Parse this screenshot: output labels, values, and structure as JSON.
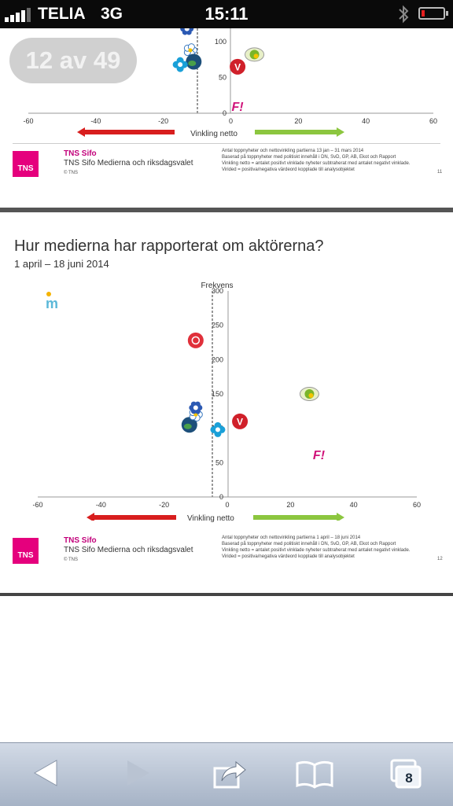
{
  "status_bar": {
    "carrier": "TELIA",
    "network": "3G",
    "time": "15:11"
  },
  "viewer": {
    "counter": "12 av 49"
  },
  "slide1": {
    "chart_data": {
      "type": "scatter",
      "xlabel": "Vinkling netto",
      "x_ticks": [
        -60,
        -40,
        -20,
        0,
        20,
        40,
        60
      ],
      "y_ticks_visible": [
        100,
        50,
        0
      ],
      "xlim": [
        -60,
        60
      ],
      "points": [
        {
          "party": "Kristdemokraterna",
          "icon": "kd-flower-icon",
          "x": -13,
          "y": 118
        },
        {
          "party": "Folkpartiet",
          "icon": "fp-flower-icon",
          "x": -12,
          "y": 88
        },
        {
          "party": "Moderaterna",
          "icon": "m-globe-icon",
          "x": -11,
          "y": 72
        },
        {
          "party": "Centerpartiet",
          "icon": "c-clover-icon",
          "x": -15,
          "y": 68
        },
        {
          "party": "Vänsterpartiet",
          "icon": "v-logo-icon",
          "x": 2,
          "y": 65
        },
        {
          "party": "Sverigedemokraterna",
          "icon": "sd-flower-icon",
          "x": 7,
          "y": 82
        },
        {
          "party": "Feministiskt initiativ",
          "icon": "fi-logo-icon",
          "x": 2,
          "y": 10
        }
      ]
    },
    "footer": {
      "brand": "TNS Sifo",
      "series": "TNS Sifo Medierna och riksdagsvalet",
      "copyright": "© TNS",
      "notes": [
        "Antal toppnyheter och nettovinkling partierna 13 jan – 31 mars 2014",
        "Baserad på toppnyheter med politiskt innehåll i DN, SvD, GP, AB, Ekot och Rapport",
        "Vinkling netto = antalet positivt vinklade nyheter subtraherat med antalet negativt vinklade.",
        "Virided = positiva/negativa värdeord kopplade till analysobjektet"
      ],
      "page": "11",
      "logo_text": "TNS"
    }
  },
  "slide2": {
    "title": "Hur medierna har rapporterat om aktörerna?",
    "subtitle": "1 april – 18 juni 2014",
    "chart_data": {
      "type": "scatter",
      "ylabel": "Frekvens",
      "xlabel": "Vinkling netto",
      "x_ticks": [
        -60,
        -40,
        -20,
        0,
        20,
        40,
        60
      ],
      "y_ticks": [
        300,
        250,
        200,
        150,
        100,
        50,
        0
      ],
      "xlim": [
        -60,
        60
      ],
      "ylim": [
        0,
        300
      ],
      "points": [
        {
          "party": "Moderaterna",
          "icon": "m-globe-icon",
          "x": -12,
          "y": 105
        },
        {
          "party": "Folkpartiet",
          "icon": "fp-flower-icon",
          "x": -10,
          "y": 120
        },
        {
          "party": "Kristdemokraterna",
          "icon": "kd-flower-icon",
          "x": -10,
          "y": 130
        },
        {
          "party": "Centerpartiet",
          "icon": "c-clover-icon",
          "x": -3,
          "y": 98
        },
        {
          "party": "Socialdemokraterna",
          "icon": "s-rose-icon",
          "x": -10,
          "y": 228
        },
        {
          "party": "Vänsterpartiet",
          "icon": "v-logo-icon",
          "x": 4,
          "y": 110
        },
        {
          "party": "Sverigedemokraterna",
          "icon": "sd-flower-icon",
          "x": 26,
          "y": 150
        },
        {
          "party": "Feministiskt initiativ",
          "icon": "fi-logo-icon",
          "x": 29,
          "y": 62
        }
      ],
      "outlier": {
        "party": "Miljöpartiet",
        "icon": "mp-logo-icon",
        "label": "m"
      }
    },
    "footer": {
      "brand": "TNS Sifo",
      "series": "TNS Sifo Medierna och riksdagsvalet",
      "copyright": "© TNS",
      "notes": [
        "Antal toppnyheter och nettovinkling partierna 1 april – 18 juni 2014",
        "Baserad på toppnyheter med politiskt innehåll i DN, SvD, GP, AB, Ekot och Rapport",
        "Vinkling netto = antalet positivt vinklade nyheter subtraherat med antalet negativt vinklade.",
        "Virided = positiva/negativa värdeord kopplade till analysobjektet"
      ],
      "page": "12",
      "logo_text": "TNS"
    }
  },
  "colors": {
    "negative_arrow": "#d81e1e",
    "positive_arrow": "#8cc63f",
    "tns_pink": "#e5007d"
  },
  "toolbar": {
    "tabs_count": "8",
    "back_icon": "back-arrow-icon",
    "forward_icon": "forward-arrow-icon",
    "share_icon": "share-icon",
    "bookmarks_icon": "book-icon",
    "tabs_icon": "tabs-icon"
  }
}
